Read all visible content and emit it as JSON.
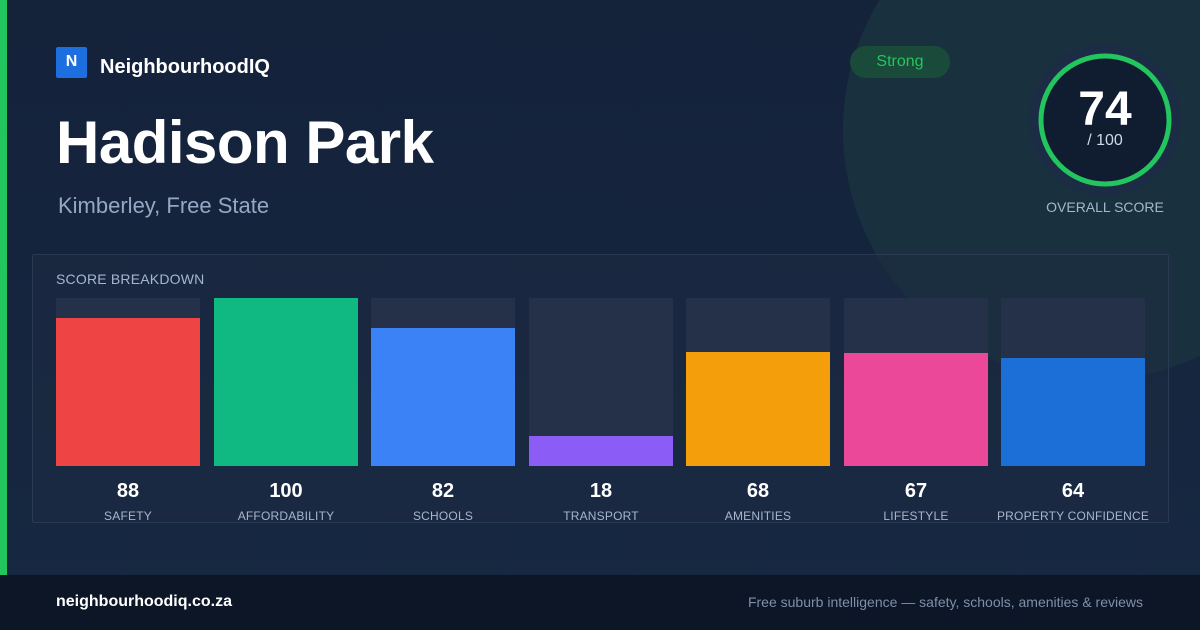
{
  "brand": {
    "logo_letter": "N",
    "name": "NeighbourhoodIQ"
  },
  "suburb": {
    "name": "Hadison Park",
    "location": "Kimberley, Free State"
  },
  "status": {
    "label": "Strong",
    "color": "#22c55e"
  },
  "overall": {
    "score": "74",
    "max": "/ 100",
    "caption": "OVERALL SCORE",
    "fraction": 0.74
  },
  "breakdown": {
    "title": "SCORE BREAKDOWN"
  },
  "chart_data": {
    "type": "bar",
    "categories": [
      "SAFETY",
      "AFFORDABILITY",
      "SCHOOLS",
      "TRANSPORT",
      "AMENITIES",
      "LIFESTYLE",
      "PROPERTY CONFIDENCE"
    ],
    "values": [
      88,
      100,
      82,
      18,
      68,
      67,
      64
    ],
    "value_labels": [
      "88",
      "100",
      "82",
      "18",
      "68",
      "67",
      "64"
    ],
    "colors": [
      "#ef4444",
      "#10b981",
      "#3b82f6",
      "#8b5cf6",
      "#f59e0b",
      "#ec4899",
      "#1d6fd8"
    ],
    "ylim": [
      0,
      100
    ]
  },
  "footer": {
    "url": "neighbourhoodiq.co.za",
    "tagline": "Free suburb intelligence — safety, schools, amenities & reviews"
  }
}
